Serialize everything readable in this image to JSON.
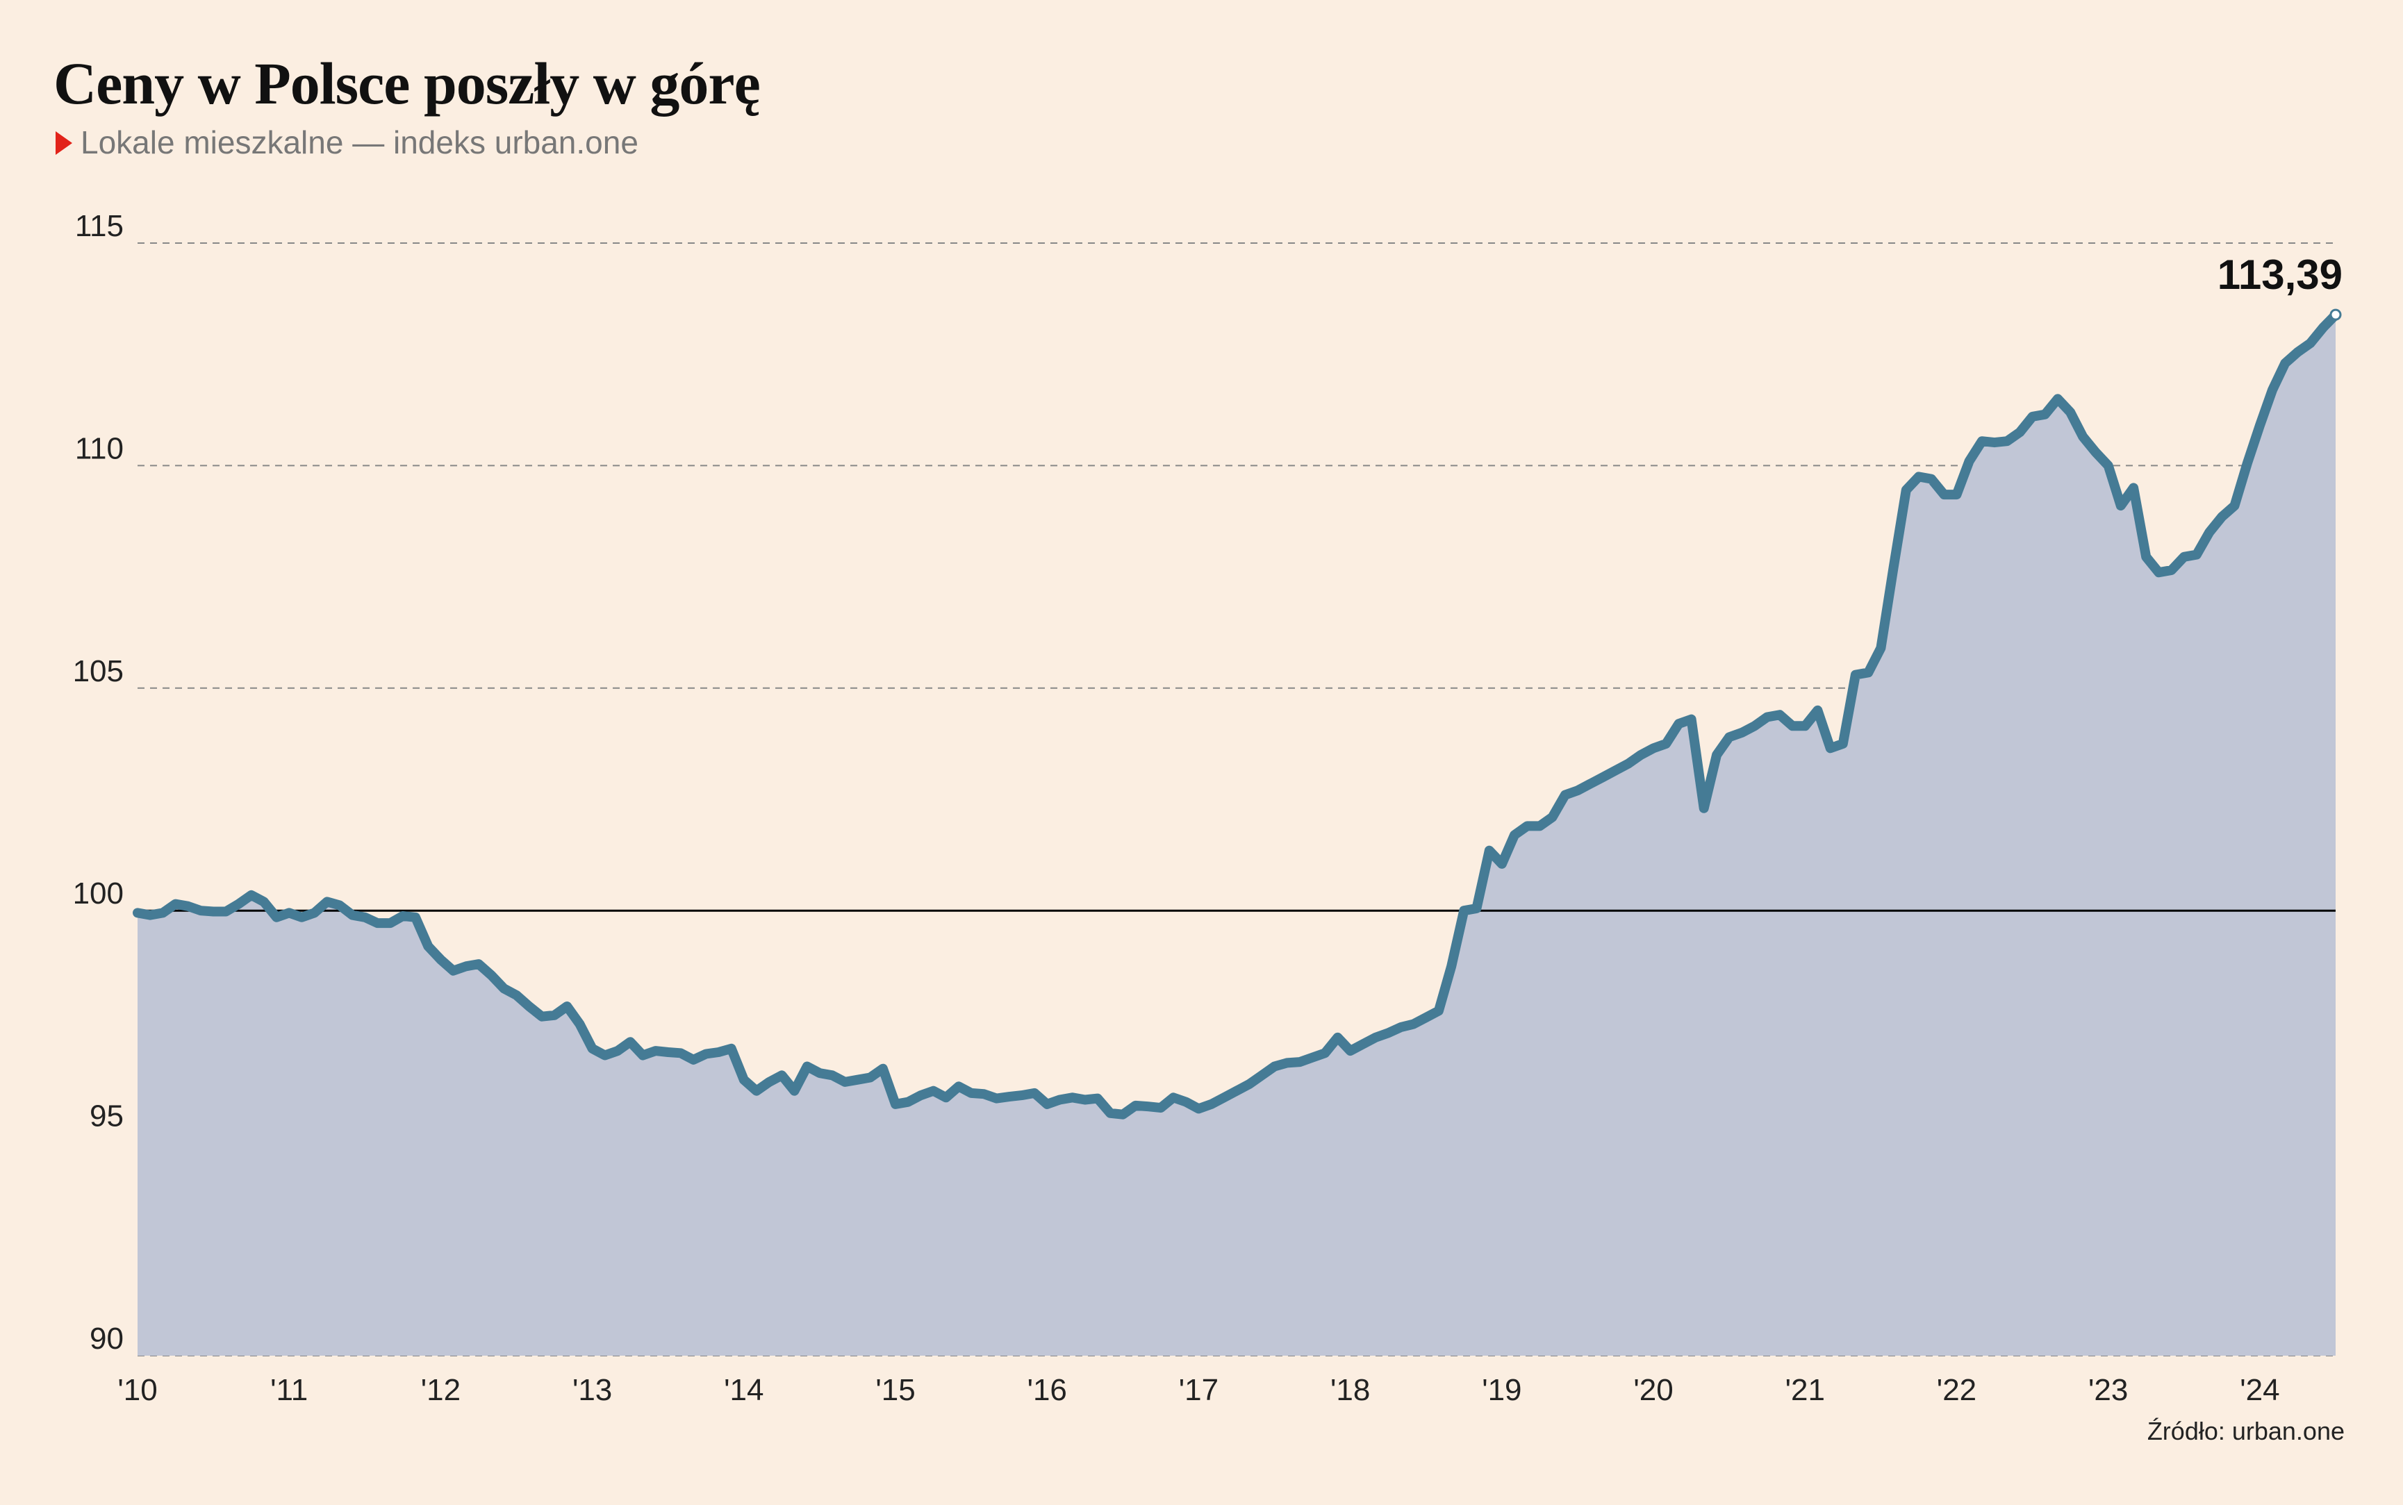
{
  "header": {
    "title": "Ceny w Polsce poszły w górę",
    "subtitle": "Lokale mieszkalne — indeks urban.one"
  },
  "footer": {
    "source": "Źródło: urban.one"
  },
  "colors": {
    "background": "#fbeee1",
    "line": "#457b95",
    "area": "#c1c6d6",
    "subtitle_marker": "#e2231a",
    "baseline": "#000000",
    "grid": "#888888"
  },
  "chart_data": {
    "type": "area",
    "title": "Ceny w Polsce poszły w górę",
    "subtitle": "Lokale mieszkalne — indeks urban.one",
    "xlabel": "",
    "ylabel": "",
    "ylim": [
      90,
      115
    ],
    "xlim": [
      2010.0,
      2024.5
    ],
    "yticks": [
      90,
      95,
      100,
      105,
      110,
      115
    ],
    "ytick_labels": [
      "90",
      "95",
      "100",
      "105",
      "110",
      "115"
    ],
    "xticks": [
      2010,
      2011,
      2012,
      2013,
      2014,
      2015,
      2016,
      2017,
      2018,
      2019,
      2020,
      2021,
      2022,
      2023,
      2024
    ],
    "xtick_labels": [
      "'10",
      "'11",
      "'12",
      "'13",
      "'14",
      "'15",
      "'16",
      "'17",
      "'18",
      "'19",
      "'20",
      "'21",
      "'22",
      "'23",
      "'24"
    ],
    "grid": "horizontal dashed",
    "reference_line": 100,
    "end_label": "113,39",
    "series": [
      {
        "x": [
          2010.0,
          2010.083,
          2010.167,
          2010.25,
          2010.333,
          2010.417,
          2010.5,
          2010.583,
          2010.667,
          2010.75,
          2010.833,
          2010.917,
          2011.0,
          2011.083,
          2011.167,
          2011.25,
          2011.333,
          2011.417,
          2011.5,
          2011.583,
          2011.667,
          2011.75,
          2011.833,
          2011.917,
          2012.0,
          2012.083,
          2012.167,
          2012.25,
          2012.333,
          2012.417,
          2012.5,
          2012.583,
          2012.667,
          2012.75,
          2012.833,
          2012.917,
          2013.0,
          2013.083,
          2013.167,
          2013.25,
          2013.333,
          2013.417,
          2013.5,
          2013.583,
          2013.667,
          2013.75,
          2013.833,
          2013.917,
          2014.0,
          2014.083,
          2014.167,
          2014.25,
          2014.333,
          2014.417,
          2014.5,
          2014.583,
          2014.667,
          2014.75,
          2014.833,
          2014.917,
          2015.0,
          2015.083,
          2015.167,
          2015.25,
          2015.333,
          2015.417,
          2015.5,
          2015.583,
          2015.667,
          2015.75,
          2015.833,
          2015.917,
          2016.0,
          2016.083,
          2016.167,
          2016.25,
          2016.333,
          2016.417,
          2016.5,
          2016.583,
          2016.667,
          2016.75,
          2016.833,
          2016.917,
          2017.0,
          2017.083,
          2017.167,
          2017.25,
          2017.333,
          2017.417,
          2017.5,
          2017.583,
          2017.667,
          2017.75,
          2017.833,
          2017.917,
          2018.0,
          2018.083,
          2018.167,
          2018.25,
          2018.333,
          2018.417,
          2018.5,
          2018.583,
          2018.667,
          2018.75,
          2018.833,
          2018.917,
          2019.0,
          2019.083,
          2019.167,
          2019.25,
          2019.333,
          2019.417,
          2019.5,
          2019.583,
          2019.667,
          2019.75,
          2019.833,
          2019.917,
          2020.0,
          2020.083,
          2020.167,
          2020.25,
          2020.333,
          2020.417,
          2020.5,
          2020.583,
          2020.667,
          2020.75,
          2020.833,
          2020.917,
          2021.0,
          2021.083,
          2021.167,
          2021.25,
          2021.333,
          2021.417,
          2021.5,
          2021.583,
          2021.667,
          2021.75,
          2021.833,
          2021.917,
          2022.0,
          2022.083,
          2022.167,
          2022.25,
          2022.333,
          2022.417,
          2022.5,
          2022.583,
          2022.667,
          2022.75,
          2022.833,
          2022.917,
          2023.0,
          2023.083,
          2023.167,
          2023.25,
          2023.333,
          2023.417,
          2023.5,
          2023.583,
          2023.667,
          2023.75,
          2023.833,
          2023.917,
          2024.0,
          2024.083,
          2024.167,
          2024.25,
          2024.333,
          2024.417,
          2024.5
        ],
        "values": [
          99.95,
          99.9,
          99.95,
          100.15,
          100.1,
          100.0,
          99.98,
          99.98,
          100.15,
          100.35,
          100.2,
          99.85,
          99.95,
          99.85,
          99.95,
          100.2,
          100.12,
          99.9,
          99.85,
          99.72,
          99.72,
          99.88,
          99.85,
          99.2,
          98.9,
          98.65,
          98.75,
          98.8,
          98.55,
          98.25,
          98.1,
          97.85,
          97.62,
          97.65,
          97.85,
          97.45,
          96.9,
          96.75,
          96.85,
          97.05,
          96.75,
          96.85,
          96.82,
          96.8,
          96.65,
          96.78,
          96.82,
          96.9,
          96.2,
          95.95,
          96.15,
          96.3,
          95.95,
          96.5,
          96.35,
          96.3,
          96.15,
          96.2,
          96.25,
          96.45,
          95.65,
          95.7,
          95.85,
          95.95,
          95.8,
          96.05,
          95.9,
          95.88,
          95.78,
          95.82,
          95.85,
          95.9,
          95.65,
          95.75,
          95.8,
          95.75,
          95.78,
          95.45,
          95.42,
          95.62,
          95.6,
          95.57,
          95.8,
          95.7,
          95.55,
          95.65,
          95.8,
          95.95,
          96.1,
          96.3,
          96.5,
          96.58,
          96.6,
          96.7,
          96.8,
          97.15,
          96.85,
          97.0,
          97.15,
          97.25,
          97.38,
          97.45,
          97.6,
          97.75,
          98.75,
          100.0,
          100.05,
          101.35,
          101.05,
          101.7,
          101.9,
          101.9,
          102.1,
          102.6,
          102.7,
          102.85,
          103.0,
          103.15,
          103.3,
          103.5,
          103.65,
          103.75,
          104.2,
          104.3,
          102.3,
          103.5,
          103.9,
          104.0,
          104.15,
          104.35,
          104.4,
          104.15,
          104.15,
          104.5,
          103.65,
          103.75,
          105.3,
          105.35,
          105.9,
          107.7,
          109.45,
          109.75,
          109.7,
          109.35,
          109.35,
          110.1,
          110.55,
          110.52,
          110.55,
          110.75,
          111.1,
          111.15,
          111.5,
          111.2,
          110.65,
          110.3,
          110.0,
          109.1,
          109.5,
          107.95,
          107.6,
          107.65,
          107.95,
          108.0,
          108.5,
          108.85,
          109.1,
          110.05,
          110.9,
          111.7,
          112.3,
          112.55,
          112.75,
          113.1,
          113.39
        ]
      }
    ]
  }
}
